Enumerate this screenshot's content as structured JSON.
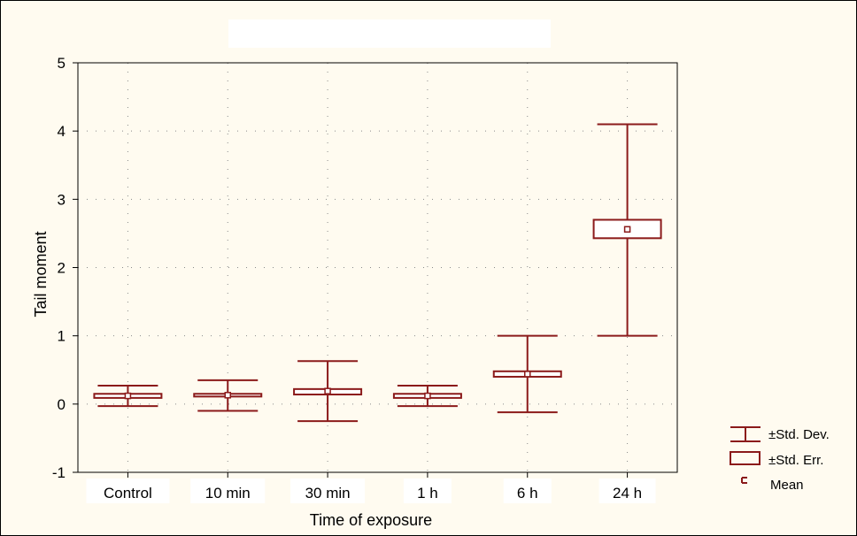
{
  "chart_data": {
    "type": "box",
    "title": "",
    "xlabel": "Time of exposure",
    "ylabel": "Tail moment",
    "categories": [
      "Control",
      "10 min",
      "30 min",
      "1 h",
      "6 h",
      "24 h"
    ],
    "ylim": [
      -1,
      5
    ],
    "yticks": [
      "-1",
      "0",
      "1",
      "2",
      "3",
      "4",
      "5"
    ],
    "grid": true,
    "legend_position": "bottom-right",
    "series": [
      {
        "name": "±Std. Dev.",
        "low": [
          -0.03,
          -0.1,
          -0.25,
          -0.03,
          -0.12,
          1.0
        ],
        "high": [
          0.27,
          0.35,
          0.63,
          0.27,
          1.0,
          4.1
        ]
      },
      {
        "name": "±Std. Err.",
        "low": [
          0.09,
          0.11,
          0.14,
          0.09,
          0.4,
          2.43
        ],
        "high": [
          0.15,
          0.15,
          0.22,
          0.15,
          0.48,
          2.7
        ]
      },
      {
        "name": "Mean",
        "values": [
          0.12,
          0.13,
          0.19,
          0.12,
          0.44,
          2.56
        ]
      }
    ],
    "colors": {
      "marks": "#8b1a1a",
      "grid": "#8a8a8a",
      "axes": "#000000"
    }
  }
}
